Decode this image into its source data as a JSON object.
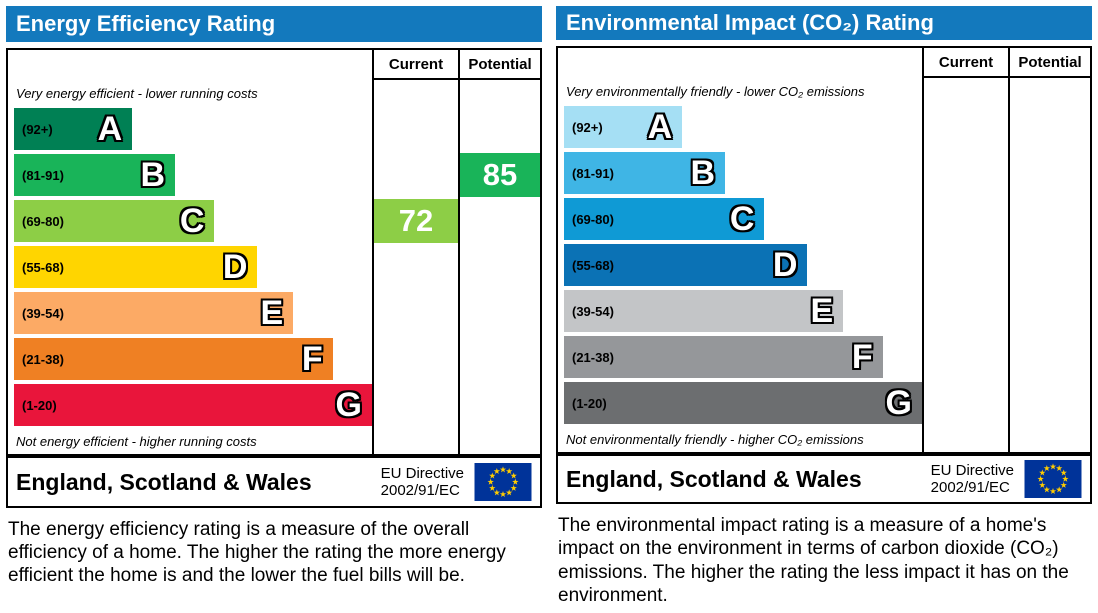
{
  "header_color": "#1379bd",
  "flag_colors": {
    "background": "#003399",
    "star": "#ffcc00"
  },
  "energy": {
    "title": "Energy Efficiency Rating",
    "header_color": "#1379bd",
    "columns": {
      "current": "Current",
      "potential": "Potential"
    },
    "top_note": "Very energy efficient - lower running costs",
    "bottom_note": "Not energy efficient - higher running costs",
    "bands": [
      {
        "range": "(92+)",
        "letter": "A",
        "color": "#008054",
        "width_pct": 33
      },
      {
        "range": "(81-91)",
        "letter": "B",
        "color": "#19b459",
        "width_pct": 45
      },
      {
        "range": "(69-80)",
        "letter": "C",
        "color": "#8dce46",
        "width_pct": 56
      },
      {
        "range": "(55-68)",
        "letter": "D",
        "color": "#ffd500",
        "width_pct": 68
      },
      {
        "range": "(39-54)",
        "letter": "E",
        "color": "#fcaa65",
        "width_pct": 78
      },
      {
        "range": "(21-38)",
        "letter": "F",
        "color": "#ef8023",
        "width_pct": 89
      },
      {
        "range": "(1-20)",
        "letter": "G",
        "color": "#e9153b",
        "width_pct": 100
      }
    ],
    "current": {
      "value": "72",
      "band": "C",
      "color": "#8dce46"
    },
    "potential": {
      "value": "85",
      "band": "B",
      "color": "#19b459"
    },
    "footer": {
      "region": "England, Scotland & Wales",
      "directive_line1": "EU Directive",
      "directive_line2": "2002/91/EC"
    },
    "description": "The energy efficiency rating is a measure of the overall efficiency of a home. The higher the rating the more energy efficient the home is and the lower the fuel bills will be."
  },
  "environment": {
    "title": "Environmental Impact (CO₂) Rating",
    "header_color": "#1379bd",
    "columns": {
      "current": "Current",
      "potential": "Potential"
    },
    "top_note": "Very environmentally friendly - lower CO₂ emissions",
    "bottom_note": "Not environmentally friendly - higher CO₂ emissions",
    "bands": [
      {
        "range": "(92+)",
        "letter": "A",
        "color": "#a5dff4",
        "width_pct": 33
      },
      {
        "range": "(81-91)",
        "letter": "B",
        "color": "#3fb5e5",
        "width_pct": 45
      },
      {
        "range": "(69-80)",
        "letter": "C",
        "color": "#0f9ad5",
        "width_pct": 56
      },
      {
        "range": "(55-68)",
        "letter": "D",
        "color": "#0b72b5",
        "width_pct": 68
      },
      {
        "range": "(39-54)",
        "letter": "E",
        "color": "#c3c5c7",
        "width_pct": 78
      },
      {
        "range": "(21-38)",
        "letter": "F",
        "color": "#95979a",
        "width_pct": 89
      },
      {
        "range": "(1-20)",
        "letter": "G",
        "color": "#6c6e70",
        "width_pct": 100
      }
    ],
    "current": null,
    "potential": null,
    "footer": {
      "region": "England, Scotland & Wales",
      "directive_line1": "EU Directive",
      "directive_line2": "2002/91/EC"
    },
    "description": "The environmental impact rating is a measure of a home's impact on the environment in terms of carbon dioxide (CO₂) emissions. The higher the rating the less impact it has on the environment."
  },
  "chart_data": [
    {
      "type": "bar",
      "title": "Energy Efficiency Rating",
      "categories": [
        "A (92+)",
        "B (81-91)",
        "C (69-80)",
        "D (55-68)",
        "E (39-54)",
        "F (21-38)",
        "G (1-20)"
      ],
      "band_colors": [
        "#008054",
        "#19b459",
        "#8dce46",
        "#ffd500",
        "#fcaa65",
        "#ef8023",
        "#e9153b"
      ],
      "current": 72,
      "current_band": "C",
      "potential": 85,
      "potential_band": "B",
      "region": "England, Scotland & Wales",
      "directive": "EU Directive 2002/91/EC"
    },
    {
      "type": "bar",
      "title": "Environmental Impact (CO₂) Rating",
      "categories": [
        "A (92+)",
        "B (81-91)",
        "C (69-80)",
        "D (55-68)",
        "E (39-54)",
        "F (21-38)",
        "G (1-20)"
      ],
      "band_colors": [
        "#a5dff4",
        "#3fb5e5",
        "#0f9ad5",
        "#0b72b5",
        "#c3c5c7",
        "#95979a",
        "#6c6e70"
      ],
      "current": null,
      "potential": null,
      "region": "England, Scotland & Wales",
      "directive": "EU Directive 2002/91/EC"
    }
  ]
}
